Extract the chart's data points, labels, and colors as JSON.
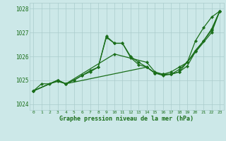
{
  "title": "Graphe pression niveau de la mer (hPa)",
  "bg_color": "#cce8e8",
  "grid_color": "#aacccc",
  "line_color": "#1a6e1a",
  "xlim": [
    -0.5,
    23.5
  ],
  "ylim": [
    1023.75,
    1028.25
  ],
  "yticks": [
    1024,
    1025,
    1026,
    1027,
    1028
  ],
  "xticks": [
    0,
    1,
    2,
    3,
    4,
    5,
    6,
    7,
    8,
    9,
    10,
    11,
    12,
    13,
    14,
    15,
    16,
    17,
    18,
    19,
    20,
    21,
    22,
    23
  ],
  "lines": [
    {
      "x": [
        0,
        1,
        2,
        3,
        4,
        5,
        6,
        7,
        8,
        9,
        10,
        11,
        12,
        13,
        14,
        15,
        16,
        17,
        18,
        19,
        20,
        21,
        22,
        23
      ],
      "y": [
        1024.55,
        1024.85,
        1024.85,
        1024.95,
        1024.85,
        1025.0,
        1025.2,
        1025.35,
        1025.55,
        1026.8,
        1026.55,
        1026.55,
        1026.0,
        1025.75,
        1025.55,
        1025.3,
        1025.25,
        1025.35,
        1025.55,
        1025.75,
        1026.65,
        1027.2,
        1027.65,
        1027.9
      ]
    },
    {
      "x": [
        0,
        3,
        4,
        5,
        6,
        7,
        8,
        9,
        10,
        11,
        12,
        13,
        14,
        15,
        16,
        17,
        18,
        19,
        20,
        21,
        22,
        23
      ],
      "y": [
        1024.55,
        1025.0,
        1024.85,
        1025.0,
        1025.2,
        1025.4,
        1025.55,
        1026.85,
        1026.55,
        1026.55,
        1025.95,
        1025.65,
        1025.55,
        1025.3,
        1025.25,
        1025.25,
        1025.35,
        1025.6,
        1026.2,
        1026.65,
        1027.1,
        1027.9
      ]
    },
    {
      "x": [
        0,
        3,
        4,
        10,
        14,
        15,
        16,
        17,
        18,
        19,
        20,
        21,
        22,
        23
      ],
      "y": [
        1024.55,
        1025.0,
        1024.85,
        1026.1,
        1025.75,
        1025.35,
        1025.25,
        1025.25,
        1025.45,
        1025.75,
        1026.25,
        1026.65,
        1027.15,
        1027.9
      ]
    },
    {
      "x": [
        0,
        3,
        4,
        14,
        15,
        16,
        17,
        18,
        22,
        23
      ],
      "y": [
        1024.55,
        1025.0,
        1024.85,
        1025.55,
        1025.3,
        1025.2,
        1025.25,
        1025.35,
        1027.0,
        1027.9
      ]
    }
  ]
}
